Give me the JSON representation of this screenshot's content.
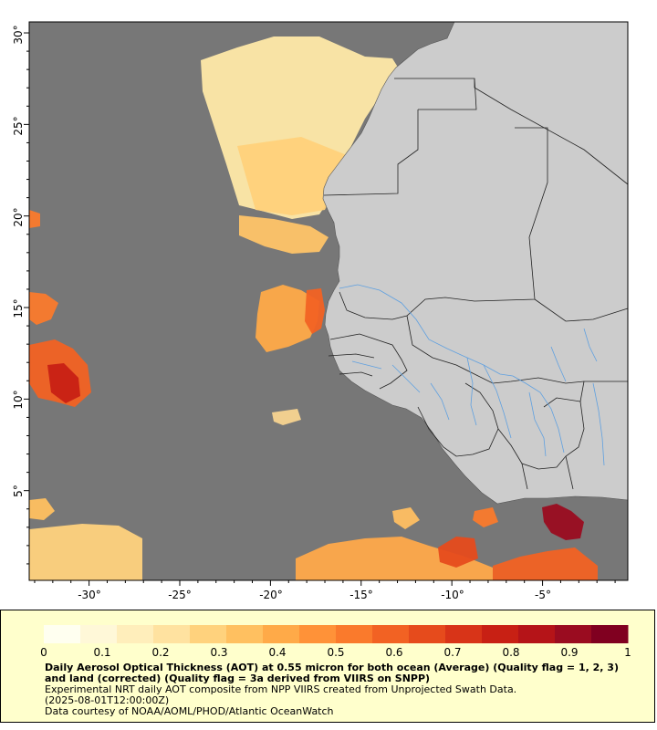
{
  "map": {
    "title": "Daily Aerosol Optical Thickness (AOT) at 0.55 micron for both ocean (Average) (Quality flag = 1, 2, 3) and land (corrected) (Quality flag = 3a derived from VIIRS on SNPP)",
    "subtitle": "Experimental NRT daily AOT composite from NPP VIIRS created from Unprojected Swath Data.",
    "timestamp": "(2025-08-01T12:00:00Z)",
    "credit": "Data courtesy of NOAA/AOML/PHOD/Atlantic OceanWatch",
    "lon_range": [
      -33.3,
      -0.3
    ],
    "lat_range": [
      0.1,
      30.6
    ],
    "lon_ticks": [
      "-30°",
      "-25°",
      "-20°",
      "-15°",
      "-10°",
      "-5°"
    ],
    "lat_ticks": [
      "5°",
      "10°",
      "15°",
      "20°",
      "25°",
      "30°"
    ],
    "colors": {
      "ocean_nodata": "#777777",
      "land": "#cccccc",
      "border": "#222222",
      "river": "#5fa0e0",
      "panel": "#ffffcc"
    }
  },
  "colorbar": {
    "min": 0,
    "max": 1,
    "labels": [
      "0",
      "0.1",
      "0.2",
      "0.3",
      "0.4",
      "0.5",
      "0.6",
      "0.7",
      "0.8",
      "0.9",
      "1"
    ],
    "colors": [
      "#fffff0",
      "#fff8d8",
      "#ffeebb",
      "#ffe2a0",
      "#ffd27d",
      "#ffc060",
      "#ffaa48",
      "#ff9238",
      "#fa7a2c",
      "#f26223",
      "#e64b1c",
      "#d83418",
      "#c82014",
      "#b51418",
      "#9a0c20",
      "#800020"
    ]
  }
}
